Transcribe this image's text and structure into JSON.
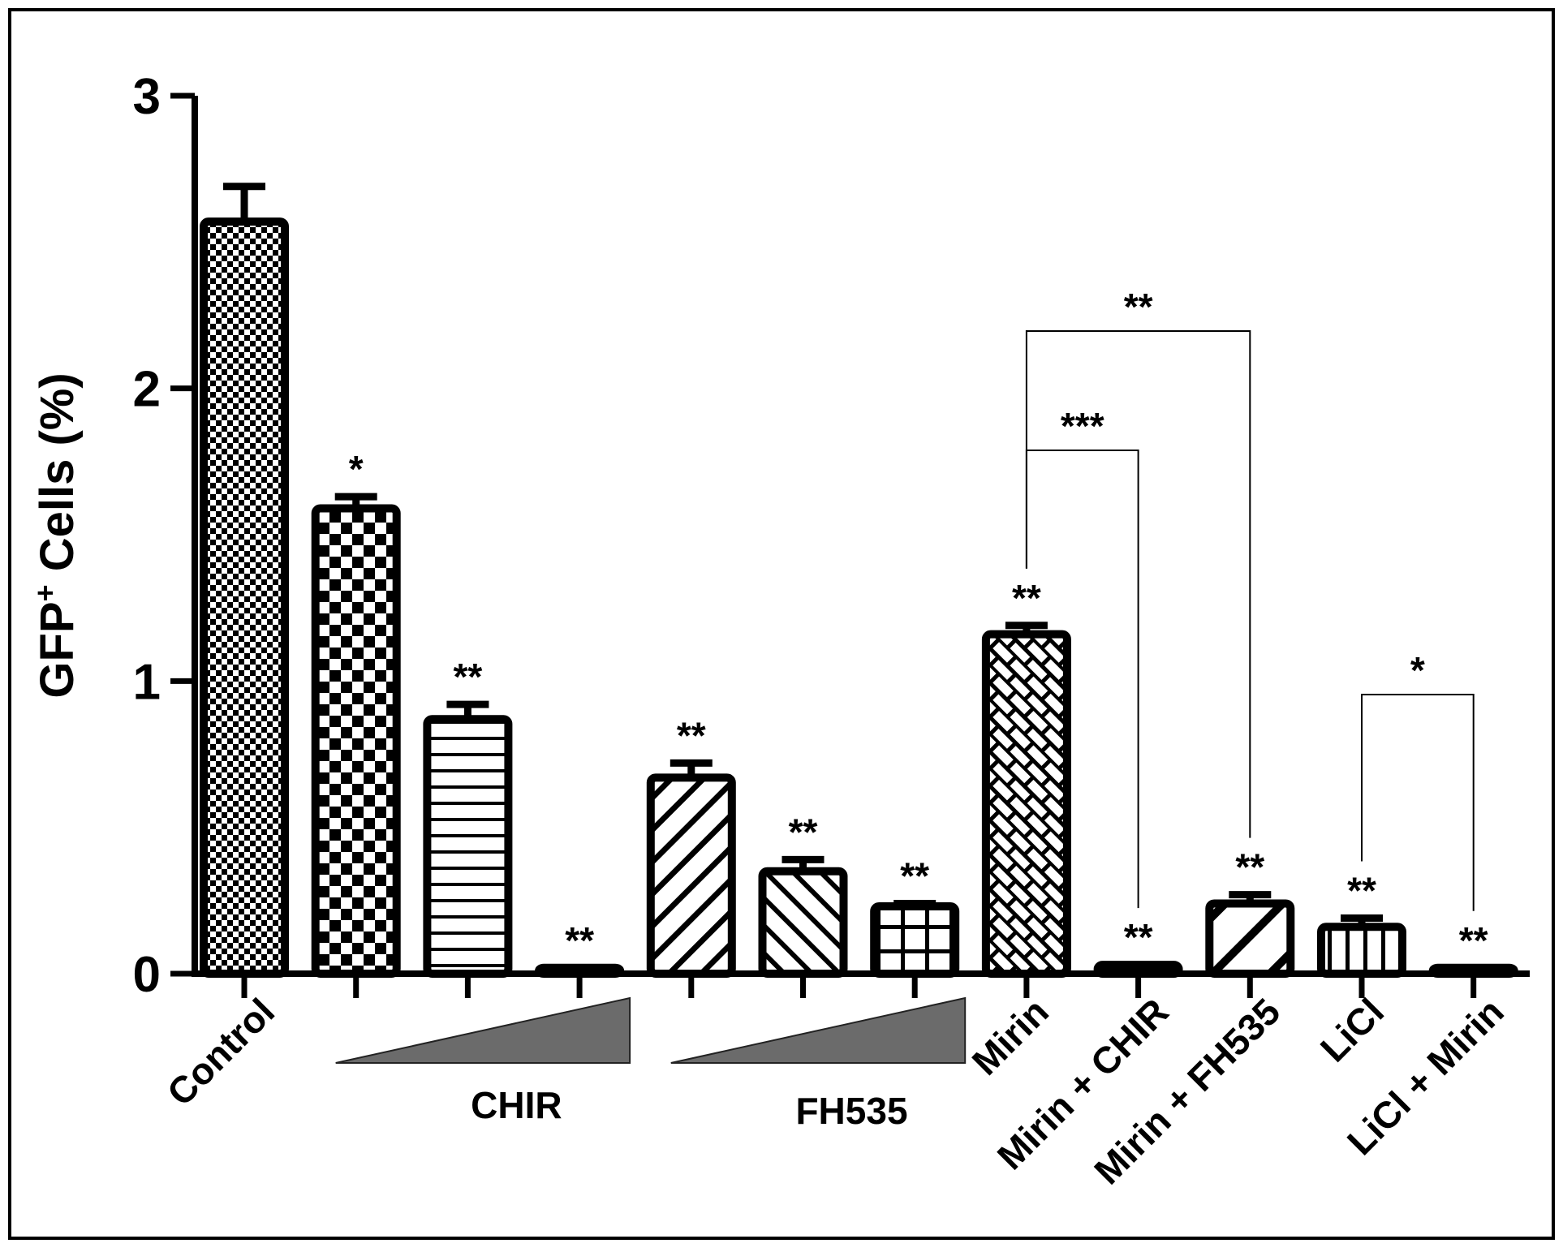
{
  "chart_data": {
    "type": "bar",
    "ylabel": "GFP",
    "ylabel_superscript": "+",
    "ylabel_rest": " Cells (%)",
    "ylim": [
      0,
      3
    ],
    "yticks": [
      "0",
      "1",
      "2",
      "3"
    ],
    "ytick_values": [
      0,
      1,
      2,
      3
    ],
    "bars": [
      {
        "value": 2.57,
        "error": 0.12,
        "pattern": "fine-checker",
        "sig": ""
      },
      {
        "value": 1.59,
        "error": 0.04,
        "pattern": "coarse-checker",
        "sig": "*"
      },
      {
        "value": 0.87,
        "error": 0.05,
        "pattern": "horizontal-lines",
        "sig": "**"
      },
      {
        "value": 0.02,
        "error": 0.0,
        "pattern": "solid",
        "sig": "**"
      },
      {
        "value": 0.67,
        "error": 0.05,
        "pattern": "diagonal-up",
        "sig": "**"
      },
      {
        "value": 0.35,
        "error": 0.04,
        "pattern": "diagonal-down",
        "sig": "**"
      },
      {
        "value": 0.23,
        "error": 0.01,
        "pattern": "grid",
        "sig": "**"
      },
      {
        "value": 1.16,
        "error": 0.03,
        "pattern": "brick-diagonal",
        "sig": "**"
      },
      {
        "value": 0.03,
        "error": 0.0,
        "pattern": "solid",
        "sig": "**"
      },
      {
        "value": 0.24,
        "error": 0.03,
        "pattern": "wide-diagonal",
        "sig": "**"
      },
      {
        "value": 0.16,
        "error": 0.03,
        "pattern": "vertical-lines",
        "sig": "**"
      },
      {
        "value": 0.02,
        "error": 0.0,
        "pattern": "solid",
        "sig": "**"
      }
    ],
    "group_labels": [
      {
        "text": "Control",
        "rotated": true
      },
      {
        "text": "CHIR",
        "rotated": false
      },
      {
        "text": "FH535",
        "rotated": false
      },
      {
        "text": "Mirin",
        "rotated": true
      },
      {
        "text": "Mirin + CHIR",
        "rotated": true
      },
      {
        "text": "Mirin + FH535",
        "rotated": true
      },
      {
        "text": "LiCl",
        "rotated": true
      },
      {
        "text": "LiCl + Mirin",
        "rotated": true
      }
    ],
    "dose_gradients": [
      "CHIR",
      "FH535"
    ],
    "brackets": [
      {
        "from": 8,
        "to": 10,
        "label": "**"
      },
      {
        "from": 8,
        "to": 9,
        "label": "***"
      },
      {
        "from": 11,
        "to": 12,
        "label": "*"
      }
    ]
  }
}
